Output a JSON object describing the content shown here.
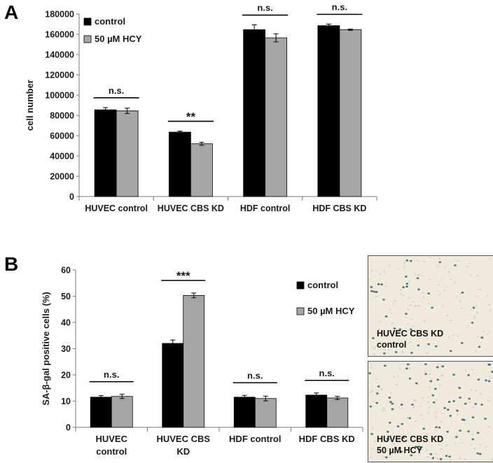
{
  "panels": {
    "a_letter": "A",
    "b_letter": "B"
  },
  "colors": {
    "control": "#000000",
    "hcy": "#a6a6a6",
    "text": "#1a1a1a"
  },
  "chart_data": [
    {
      "type": "bar",
      "panel": "A",
      "ylabel": "cell number",
      "xlabel": "",
      "ylim": [
        0,
        180000
      ],
      "yticks": [
        "0",
        "20000",
        "40000",
        "60000",
        "80000",
        "100000",
        "120000",
        "140000",
        "160000",
        "180000"
      ],
      "categories": [
        "HUVEC control",
        "HUVEC CBS KD",
        "HDF control",
        "HDF CBS KD"
      ],
      "series": [
        {
          "name": "control",
          "values": [
            85500,
            63500,
            164500,
            168500
          ],
          "errors": [
            2200,
            1000,
            4800,
            1500
          ]
        },
        {
          "name": "50 µM HCY",
          "values": [
            84500,
            52000,
            156500,
            164500
          ],
          "errors": [
            2600,
            1500,
            4000,
            600
          ]
        }
      ],
      "significance": [
        "n.s.",
        "**",
        "n.s.",
        "n.s."
      ],
      "legend_position": "top-left",
      "grid": false
    },
    {
      "type": "bar",
      "panel": "B",
      "ylabel": "SA-β-gal positive cells (%)",
      "xlabel": "",
      "ylim": [
        0,
        60
      ],
      "yticks": [
        "0",
        "10",
        "20",
        "30",
        "40",
        "50",
        "60"
      ],
      "categories": [
        [
          "HUVEC",
          "control"
        ],
        [
          "HUVEC CBS",
          "KD"
        ],
        [
          "HDF control"
        ],
        [
          "HDF CBS KD"
        ]
      ],
      "series": [
        {
          "name": "control",
          "values": [
            11.5,
            32.0,
            11.5,
            12.3
          ],
          "errors": [
            0.6,
            1.3,
            0.7,
            0.8
          ]
        },
        {
          "name": "50 µM HCY",
          "values": [
            11.8,
            50.3,
            11.0,
            11.2
          ],
          "errors": [
            0.8,
            0.9,
            0.9,
            0.6
          ]
        }
      ],
      "significance": [
        "n.s.",
        "***",
        "n.s.",
        "n.s."
      ],
      "legend_position": "top-right",
      "grid": false
    }
  ],
  "micrographs": [
    {
      "label_line1": "HUVEC CBS KD",
      "label_line2": "control"
    },
    {
      "label_line1": "HUVEC CBS KD",
      "label_line2": "50 µM HCY"
    }
  ]
}
